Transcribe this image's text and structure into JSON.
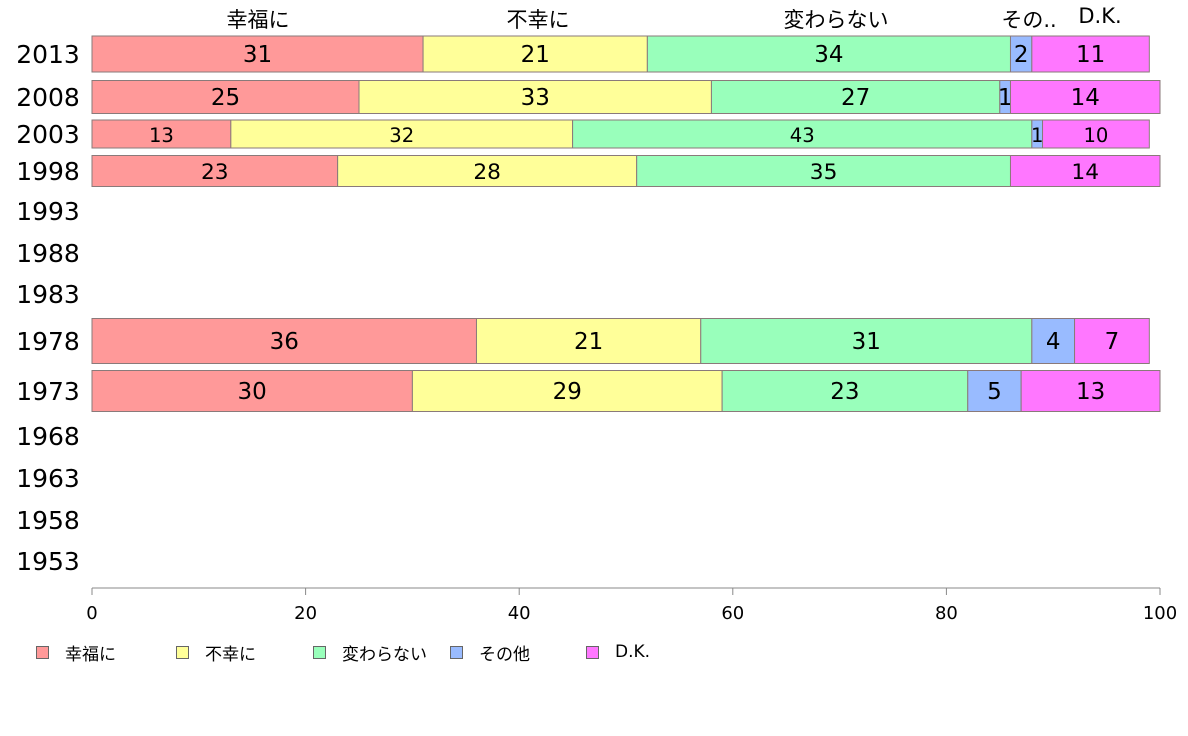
{
  "chart_data": {
    "type": "bar",
    "orientation": "horizontal",
    "stacked": true,
    "title": "",
    "xlabel": "",
    "ylabel": "",
    "xlim": [
      0,
      100
    ],
    "x_ticks": [
      "0",
      "20",
      "40",
      "60",
      "80",
      "100"
    ],
    "categories": [
      "2013",
      "2008",
      "2003",
      "1998",
      "1993",
      "1988",
      "1983",
      "1978",
      "1973",
      "1968",
      "1963",
      "1958",
      "1953"
    ],
    "header_labels": [
      "幸福に",
      "不幸に",
      "変わらない",
      "その..",
      "D.K."
    ],
    "series": [
      {
        "name": "幸福に",
        "color": "#FF9999",
        "values": [
          31,
          25,
          13,
          23,
          null,
          null,
          null,
          36,
          30,
          null,
          null,
          null,
          null
        ]
      },
      {
        "name": "不幸に",
        "color": "#FFFF99",
        "values": [
          21,
          33,
          32,
          28,
          null,
          null,
          null,
          21,
          29,
          null,
          null,
          null,
          null
        ]
      },
      {
        "name": "変わらない",
        "color": "#99FFBB",
        "values": [
          34,
          27,
          43,
          35,
          null,
          null,
          null,
          31,
          23,
          null,
          null,
          null,
          null
        ]
      },
      {
        "name": "その他",
        "color": "#99BBFF",
        "values": [
          2,
          1,
          1,
          null,
          null,
          null,
          null,
          4,
          5,
          null,
          null,
          null,
          null
        ]
      },
      {
        "name": "D.K.",
        "color": "#FF77FF",
        "values": [
          11,
          14,
          10,
          14,
          null,
          null,
          null,
          7,
          13,
          null,
          null,
          null,
          null
        ]
      }
    ],
    "legend_position": "bottom-left",
    "grid": false
  }
}
